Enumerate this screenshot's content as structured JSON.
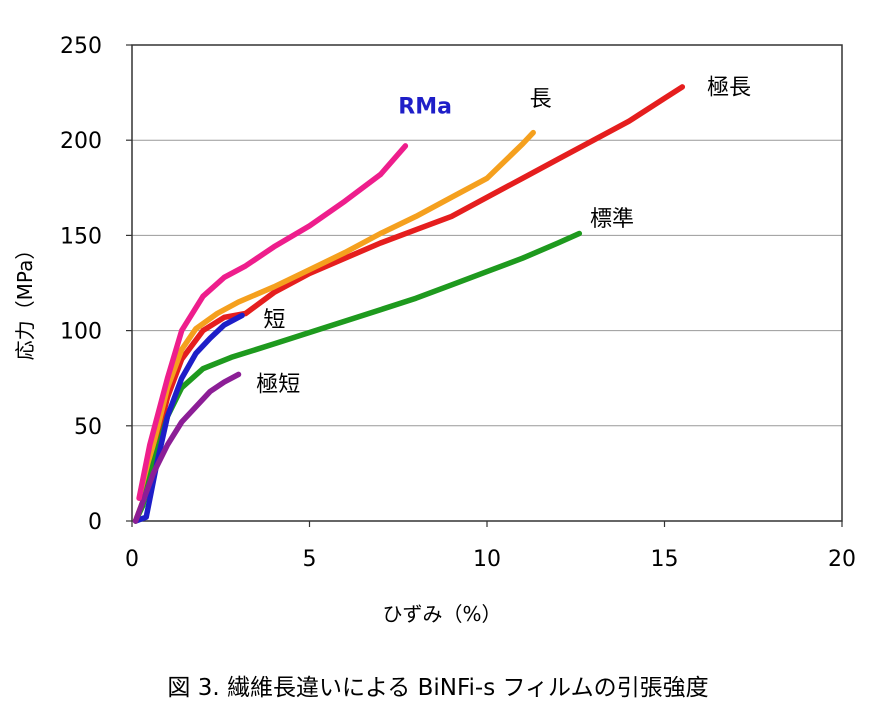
{
  "caption": "図 3. 繊維長違いによる BiNFi-s フィルムの引張強度",
  "chart_data": {
    "type": "line",
    "title": "",
    "xlabel": "ひずみ（%）",
    "ylabel": "応力（MPa）",
    "xlim": [
      0,
      20
    ],
    "ylim": [
      0,
      250
    ],
    "x_ticks": [
      "0",
      "5",
      "10",
      "15",
      "20"
    ],
    "y_ticks": [
      "0",
      "50",
      "100",
      "150",
      "200",
      "250"
    ],
    "grid": "horizontal",
    "series": [
      {
        "name": "極長",
        "color": "#e51e1e",
        "points": [
          [
            0.1,
            0
          ],
          [
            0.3,
            10
          ],
          [
            0.6,
            35
          ],
          [
            1.0,
            65
          ],
          [
            1.4,
            85
          ],
          [
            2.0,
            100
          ],
          [
            2.6,
            107
          ],
          [
            3.2,
            109
          ],
          [
            4.0,
            120
          ],
          [
            5.0,
            130
          ],
          [
            6.0,
            138
          ],
          [
            7.0,
            146
          ],
          [
            8.0,
            153
          ],
          [
            9.0,
            160
          ],
          [
            10.0,
            170
          ],
          [
            11.0,
            180
          ],
          [
            12.0,
            190
          ],
          [
            13.0,
            200
          ],
          [
            14.0,
            210
          ],
          [
            15.0,
            222
          ],
          [
            15.5,
            228
          ]
        ]
      },
      {
        "name": "長",
        "color": "#f5a01e",
        "points": [
          [
            0.1,
            0
          ],
          [
            0.3,
            10
          ],
          [
            0.6,
            40
          ],
          [
            1.0,
            70
          ],
          [
            1.4,
            90
          ],
          [
            1.8,
            101
          ],
          [
            2.4,
            109
          ],
          [
            3.0,
            115
          ],
          [
            4.0,
            123
          ],
          [
            5.0,
            132
          ],
          [
            6.0,
            141
          ],
          [
            7.0,
            151
          ],
          [
            8.0,
            160
          ],
          [
            9.0,
            170
          ],
          [
            10.0,
            180
          ],
          [
            11.0,
            198
          ],
          [
            11.3,
            204
          ]
        ]
      },
      {
        "name": "標準",
        "color": "#1e9a1e",
        "points": [
          [
            0.1,
            0
          ],
          [
            0.3,
            8
          ],
          [
            0.6,
            30
          ],
          [
            1.0,
            55
          ],
          [
            1.4,
            70
          ],
          [
            2.0,
            80
          ],
          [
            2.8,
            86
          ],
          [
            4.0,
            93
          ],
          [
            5.0,
            99
          ],
          [
            6.0,
            105
          ],
          [
            7.0,
            111
          ],
          [
            8.0,
            117
          ],
          [
            9.0,
            124
          ],
          [
            10.0,
            131
          ],
          [
            11.0,
            138
          ],
          [
            12.0,
            146
          ],
          [
            12.6,
            151
          ]
        ]
      },
      {
        "name": "短",
        "color": "#1e1ec8",
        "points": [
          [
            0.1,
            0
          ],
          [
            0.4,
            2
          ],
          [
            0.7,
            30
          ],
          [
            1.0,
            55
          ],
          [
            1.4,
            75
          ],
          [
            1.8,
            88
          ],
          [
            2.2,
            96
          ],
          [
            2.6,
            103
          ],
          [
            3.1,
            108
          ]
        ]
      },
      {
        "name": "極短",
        "color": "#8c1e96",
        "points": [
          [
            0.1,
            0
          ],
          [
            0.3,
            10
          ],
          [
            0.6,
            25
          ],
          [
            1.0,
            40
          ],
          [
            1.4,
            52
          ],
          [
            1.8,
            60
          ],
          [
            2.2,
            68
          ],
          [
            2.6,
            73
          ],
          [
            3.0,
            77
          ]
        ]
      },
      {
        "name": "RMa",
        "color": "#ee1e8c",
        "points": [
          [
            0.2,
            12
          ],
          [
            0.5,
            40
          ],
          [
            1.0,
            75
          ],
          [
            1.4,
            100
          ],
          [
            2.0,
            118
          ],
          [
            2.6,
            128
          ],
          [
            3.2,
            134
          ],
          [
            4.0,
            144
          ],
          [
            5.0,
            155
          ],
          [
            6.0,
            168
          ],
          [
            7.0,
            182
          ],
          [
            7.7,
            197
          ]
        ]
      }
    ],
    "annotations": [
      {
        "text": "RMa",
        "color": "#1e1ec8",
        "at": [
          7.5,
          214
        ]
      },
      {
        "text": "長",
        "color": "#000000",
        "at": [
          11.2,
          218
        ]
      },
      {
        "text": "極長",
        "color": "#000000",
        "at": [
          16.2,
          224
        ]
      },
      {
        "text": "標準",
        "color": "#000000",
        "at": [
          12.9,
          155
        ]
      },
      {
        "text": "短",
        "color": "#000000",
        "at": [
          3.7,
          102
        ]
      },
      {
        "text": "極短",
        "color": "#000000",
        "at": [
          3.5,
          68
        ]
      }
    ]
  }
}
